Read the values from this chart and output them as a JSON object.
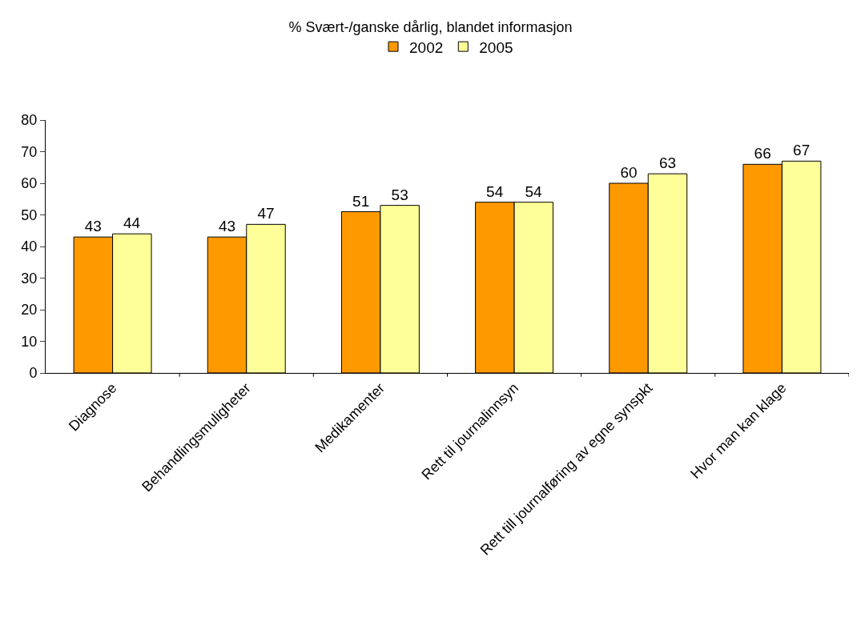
{
  "chart_data": {
    "type": "bar",
    "title": "% Svært-/ganske dårlig, blandet informasjon",
    "categories": [
      "Diagnose",
      "Behandlingsmuligheter",
      "Medikamenter",
      "Rett til journalinnsyn",
      "Rett till journalføring av egne synspkt",
      "Hvor man kan klage"
    ],
    "series": [
      {
        "name": "2002",
        "color": "#ff9900",
        "values": [
          43,
          43,
          51,
          54,
          60,
          66
        ]
      },
      {
        "name": "2005",
        "color": "#ffff99",
        "values": [
          44,
          47,
          53,
          54,
          63,
          67
        ]
      }
    ],
    "ylim": [
      0,
      80
    ],
    "yticks": [
      0,
      10,
      20,
      30,
      40,
      50,
      60,
      70,
      80
    ],
    "grid": false,
    "legend": "top",
    "data_labels": true
  }
}
